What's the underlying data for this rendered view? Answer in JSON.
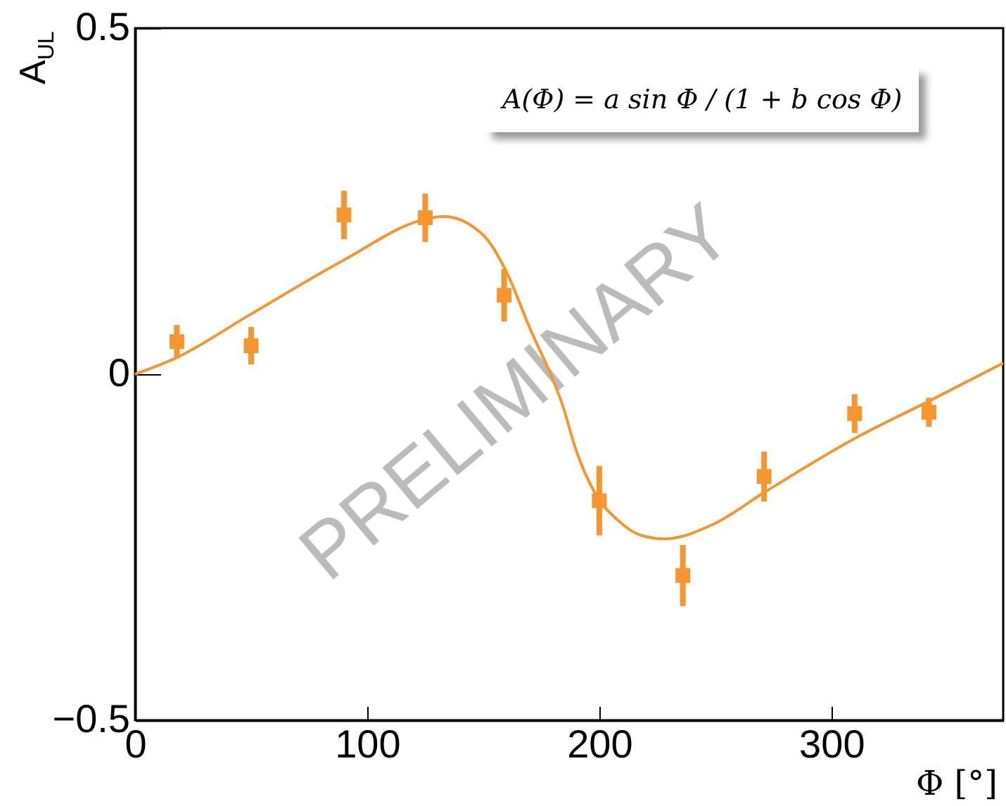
{
  "chart_data": {
    "type": "scatter",
    "xlabel": "Φ [°]",
    "ylabel": "A$_{UL}$",
    "annotations": [
      "A(Φ) = a sin Φ / (1 + b cos Φ)",
      "PRELIMINARY"
    ],
    "xlim": [
      0,
      374
    ],
    "xticks": [
      0,
      100,
      200,
      300
    ],
    "ylim": [
      -0.5,
      0.5
    ],
    "yticks": [
      -0.5,
      0,
      0.5
    ],
    "grid": false,
    "series": [
      {
        "type": "line",
        "color": "#f7962f",
        "line_style": "solid",
        "marker": "none",
        "x": [
          0,
          18,
          50,
          90,
          125,
          133,
          150,
          160,
          170,
          180,
          184,
          190,
          198,
          208,
          218,
          228,
          249,
          271,
          310,
          342,
          374
        ],
        "values": [
          0,
          0.024,
          0.087,
          0.165,
          0.224,
          0.228,
          0.201,
          0.148,
          0.067,
          -0.008,
          -0.043,
          -0.11,
          -0.171,
          -0.211,
          -0.233,
          -0.238,
          -0.217,
          -0.171,
          -0.093,
          -0.039,
          0.016
        ]
      },
      {
        "color": "#f7962f",
        "marker": "square",
        "x": [
          18,
          50,
          90,
          125,
          159,
          200,
          236,
          271,
          310,
          342
        ],
        "values": [
          0.047,
          0.041,
          0.23,
          0.226,
          0.114,
          -0.183,
          -0.291,
          -0.148,
          -0.057,
          -0.055
        ],
        "errors": [
          0.024,
          0.027,
          0.035,
          0.035,
          0.038,
          0.05,
          0.044,
          0.036,
          0.028,
          0.021
        ]
      }
    ]
  }
}
